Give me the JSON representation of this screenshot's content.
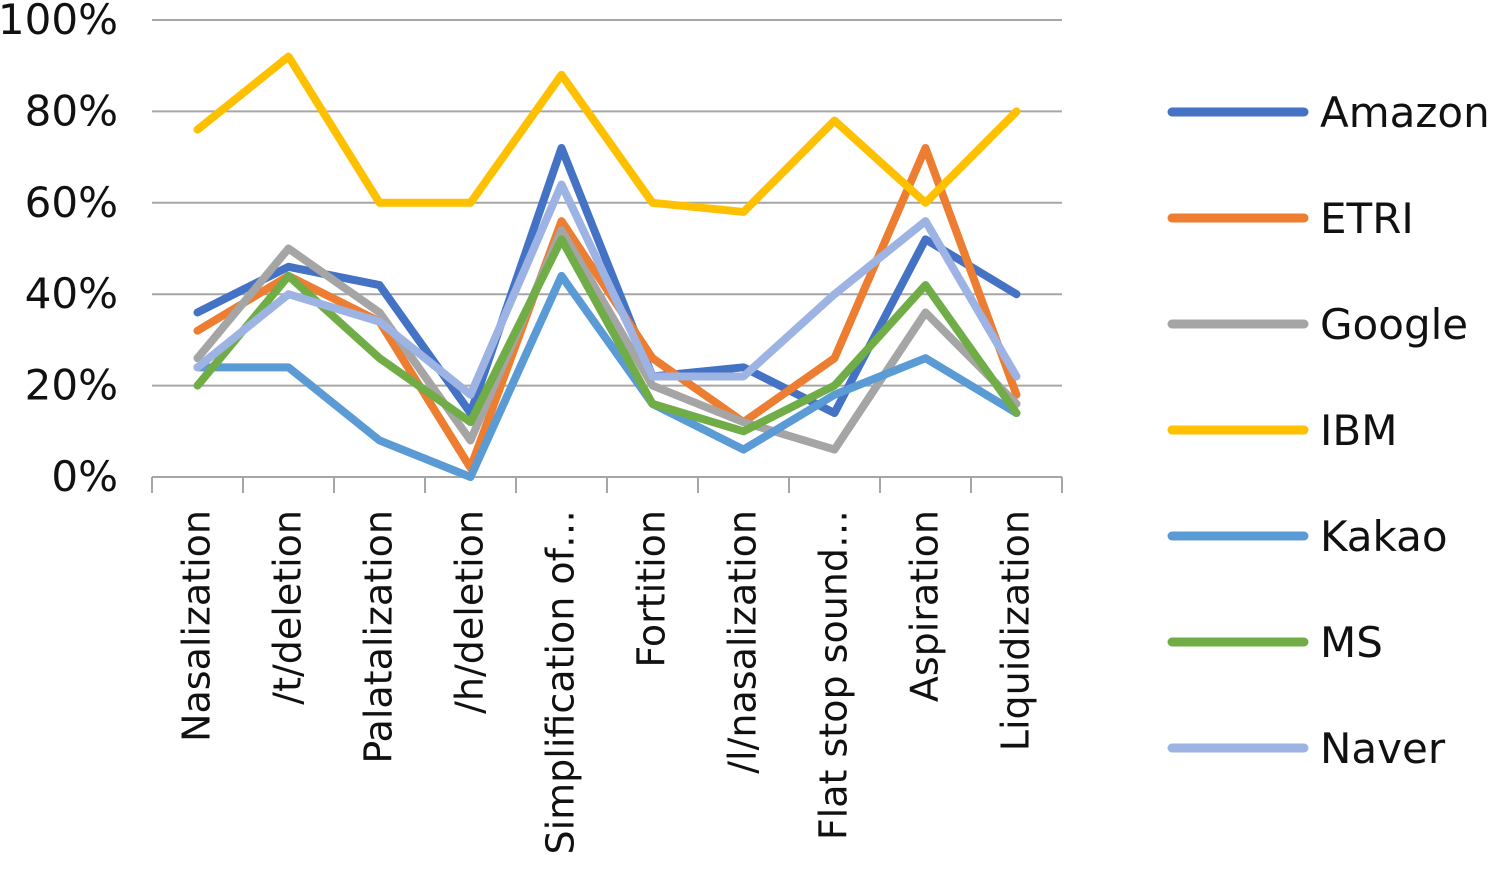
{
  "chart_data": {
    "type": "line",
    "categories": [
      "Nasalization",
      "/t/deletion",
      "Palatalization",
      "/h/deletion",
      "Simplification of…",
      "Fortition",
      "/l/nasalization",
      "Flat stop sound…",
      "Aspiration",
      "Liquidization"
    ],
    "ylim": [
      0,
      100
    ],
    "yticks": [
      "0%",
      "20%",
      "40%",
      "60%",
      "80%",
      "100%"
    ],
    "grid": true,
    "legend_position": "right",
    "series": [
      {
        "name": "Amazon",
        "color": "#4472C4",
        "values": [
          36,
          46,
          42,
          14,
          72,
          22,
          24,
          14,
          52,
          40
        ]
      },
      {
        "name": "ETRI",
        "color": "#ED7D31",
        "values": [
          32,
          44,
          34,
          2,
          56,
          26,
          12,
          26,
          72,
          18
        ]
      },
      {
        "name": "Google",
        "color": "#A5A5A5",
        "values": [
          26,
          50,
          36,
          8,
          54,
          20,
          12,
          6,
          36,
          16
        ]
      },
      {
        "name": "IBM",
        "color": "#FFC000",
        "values": [
          76,
          92,
          60,
          60,
          88,
          60,
          58,
          78,
          60,
          80
        ]
      },
      {
        "name": "Kakao",
        "color": "#5B9BD5",
        "values": [
          24,
          24,
          8,
          0,
          44,
          16,
          6,
          18,
          26,
          14
        ]
      },
      {
        "name": "MS",
        "color": "#70AD47",
        "values": [
          20,
          44,
          26,
          12,
          52,
          16,
          10,
          20,
          42,
          14
        ]
      },
      {
        "name": "Naver",
        "color": "#9DB3E3",
        "values": [
          24,
          40,
          34,
          18,
          64,
          22,
          22,
          40,
          56,
          22
        ]
      }
    ]
  }
}
